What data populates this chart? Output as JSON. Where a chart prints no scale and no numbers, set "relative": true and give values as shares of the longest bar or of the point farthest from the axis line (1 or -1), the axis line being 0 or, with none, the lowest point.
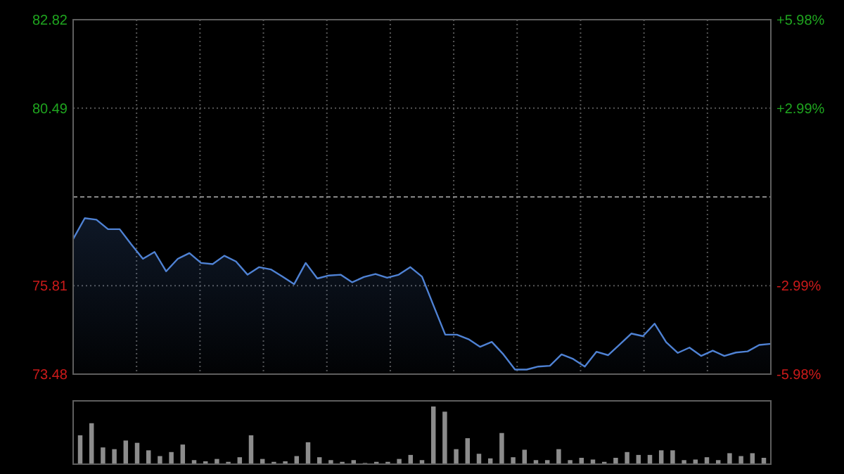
{
  "chart_data": [
    {
      "type": "area",
      "categories": [
        null,
        null,
        null,
        null,
        null,
        null,
        null,
        null,
        null,
        null,
        null,
        null,
        null,
        null,
        null,
        null,
        null,
        null,
        null,
        null,
        null,
        null,
        null,
        null,
        null,
        null,
        null,
        null,
        null,
        null,
        null,
        null,
        null,
        null,
        null,
        null,
        null,
        null,
        null,
        null,
        null,
        null,
        null,
        null,
        null,
        null,
        null,
        null,
        null,
        null,
        null,
        null,
        null,
        null,
        null,
        null,
        null,
        null,
        null,
        null,
        null
      ],
      "series": [
        {
          "color": "#4f82d4",
          "values": [
            77.04,
            77.59,
            77.55,
            77.3,
            77.3,
            76.9,
            76.52,
            76.7,
            76.19,
            76.52,
            76.67,
            76.41,
            76.38,
            76.6,
            76.45,
            76.1,
            76.3,
            76.24,
            76.05,
            75.85,
            76.41,
            76.0,
            76.08,
            76.1,
            75.9,
            76.04,
            76.12,
            76.02,
            76.1,
            76.3,
            76.05,
            75.28,
            74.52,
            74.52,
            74.4,
            74.2,
            74.33,
            74.0,
            73.6,
            73.6,
            73.68,
            73.7,
            74.0,
            73.88,
            73.68,
            74.07,
            73.98,
            74.26,
            74.55,
            74.48,
            74.81,
            74.32,
            74.04,
            74.18,
            73.96,
            74.1,
            73.96,
            74.05,
            74.08,
            74.25,
            74.28
          ]
        }
      ],
      "ylim": [
        73.48,
        82.82
      ],
      "yticks": [
        73.48,
        75.81,
        80.49,
        82.82
      ],
      "y2lim": [
        -5.98,
        5.98
      ],
      "y2ticks": [
        {
          "value": -5.98,
          "label": "-5.98%"
        },
        {
          "value": -2.99,
          "label": "-2.99%"
        },
        {
          "value": 2.99,
          "label": "+2.99%"
        },
        {
          "value": 5.98,
          "label": "+5.98%"
        }
      ],
      "ref_lines": [
        {
          "axis": "y",
          "value": 78.15
        }
      ],
      "grid": true
    },
    {
      "type": "bar",
      "relative": true,
      "categories": [
        null,
        null,
        null,
        null,
        null,
        null,
        null,
        null,
        null,
        null,
        null,
        null,
        null,
        null,
        null,
        null,
        null,
        null,
        null,
        null,
        null,
        null,
        null,
        null,
        null,
        null,
        null,
        null,
        null,
        null,
        null,
        null,
        null,
        null,
        null,
        null,
        null,
        null,
        null,
        null,
        null,
        null,
        null,
        null,
        null,
        null,
        null,
        null,
        null,
        null,
        null,
        null,
        null,
        null,
        null,
        null,
        null,
        null,
        null,
        null,
        null
      ],
      "series": [
        {
          "color": "#8c8c8c",
          "values": [
            0.5,
            0.71,
            0.29,
            0.26,
            0.41,
            0.37,
            0.24,
            0.14,
            0.21,
            0.34,
            0.07,
            0.05,
            0.09,
            0.04,
            0.12,
            0.5,
            0.09,
            0.04,
            0.05,
            0.14,
            0.38,
            0.12,
            0.07,
            0.04,
            0.07,
            0.02,
            0.04,
            0.04,
            0.09,
            0.16,
            0.07,
            1,
            0.91,
            0.26,
            0.45,
            0.18,
            0.1,
            0.54,
            0.12,
            0.25,
            0.07,
            0.07,
            0.26,
            0.07,
            0.11,
            0.08,
            0.04,
            0.11,
            0.21,
            0.16,
            0.16,
            0.24,
            0.24,
            0.07,
            0.08,
            0.12,
            0.07,
            0.19,
            0.14,
            0.19,
            0.11
          ]
        }
      ]
    }
  ]
}
